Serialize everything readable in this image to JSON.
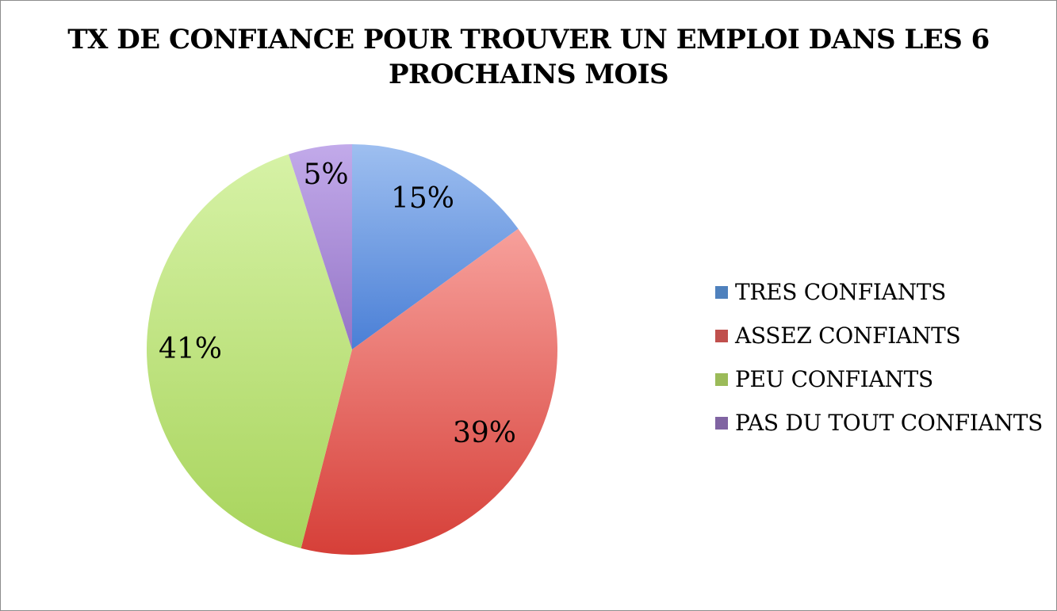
{
  "chart_data": {
    "type": "pie",
    "title_lines": [
      "TX DE CONFIANCE POUR TROUVER UN EMPLOI DANS LES 6",
      "PROCHAINS MOIS"
    ],
    "categories": [
      "TRES CONFIANTS",
      "ASSEZ CONFIANTS",
      "PEU CONFIANTS",
      "PAS DU TOUT CONFIANTS"
    ],
    "values": [
      15,
      39,
      41,
      5
    ],
    "labels": [
      "15%",
      "39%",
      "41%",
      "5%"
    ],
    "colors": [
      "#4f81bd",
      "#c0504d",
      "#9bbb59",
      "#8064a2"
    ],
    "legend_position": "right"
  }
}
